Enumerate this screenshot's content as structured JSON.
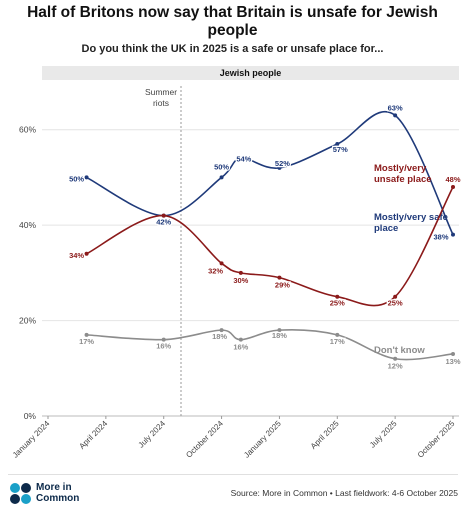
{
  "title": "Half of Britons now say that Britain is unsafe for Jewish people",
  "subtitle": "Do you think the UK in 2025 is a safe or unsafe place for...",
  "panel_label": "Jewish people",
  "source": "Source: More in Common • Last fieldwork: 4-6 October 2025",
  "logo": {
    "line1": "More in",
    "line2": "Common"
  },
  "chart_data": {
    "type": "line",
    "x_ticks": [
      "January 2024",
      "April 2024",
      "July 2024",
      "October 2024",
      "January 2025",
      "April 2025",
      "July 2025",
      "October 2025"
    ],
    "y_ticks": [
      "0%",
      "20%",
      "40%",
      "60%"
    ],
    "ylim": [
      0,
      70
    ],
    "xlim": [
      "2024-01",
      "2025-10"
    ],
    "annotation": {
      "label_line1": "Summer",
      "label_line2": "riots",
      "x": "2024-08"
    },
    "series": [
      {
        "name": "Mostly/very safe place",
        "name_lines": [
          "Mostly/very safe",
          "place"
        ],
        "color": "#1f3a7a",
        "points": [
          {
            "x": "2024-03",
            "y": 50,
            "label": "50%"
          },
          {
            "x": "2024-07",
            "y": 42,
            "label": "42%"
          },
          {
            "x": "2024-10",
            "y": 50,
            "label": "50%"
          },
          {
            "x": "2024-11",
            "y": 54,
            "label": "54%"
          },
          {
            "x": "2025-01",
            "y": 52,
            "label": "52%"
          },
          {
            "x": "2025-04",
            "y": 57,
            "label": "57%"
          },
          {
            "x": "2025-07",
            "y": 63,
            "label": "63%"
          },
          {
            "x": "2025-10",
            "y": 38,
            "label": "38%"
          }
        ]
      },
      {
        "name": "Mostly/very unsafe place",
        "name_lines": [
          "Mostly/very",
          "unsafe place"
        ],
        "color": "#8b1a1a",
        "points": [
          {
            "x": "2024-03",
            "y": 34,
            "label": "34%"
          },
          {
            "x": "2024-07",
            "y": 42,
            "label": ""
          },
          {
            "x": "2024-10",
            "y": 32,
            "label": "32%"
          },
          {
            "x": "2024-11",
            "y": 30,
            "label": "30%"
          },
          {
            "x": "2025-01",
            "y": 29,
            "label": "29%"
          },
          {
            "x": "2025-04",
            "y": 25,
            "label": "25%"
          },
          {
            "x": "2025-07",
            "y": 25,
            "label": "25%"
          },
          {
            "x": "2025-10",
            "y": 48,
            "label": "48%"
          }
        ]
      },
      {
        "name": "Don't know",
        "name_lines": [
          "Don't know"
        ],
        "color": "#8c8c8c",
        "points": [
          {
            "x": "2024-03",
            "y": 17,
            "label": "17%"
          },
          {
            "x": "2024-07",
            "y": 16,
            "label": "16%"
          },
          {
            "x": "2024-10",
            "y": 18,
            "label": "18%"
          },
          {
            "x": "2024-11",
            "y": 16,
            "label": "16%"
          },
          {
            "x": "2025-01",
            "y": 18,
            "label": "18%"
          },
          {
            "x": "2025-04",
            "y": 17,
            "label": "17%"
          },
          {
            "x": "2025-07",
            "y": 12,
            "label": "12%"
          },
          {
            "x": "2025-10",
            "y": 13,
            "label": "13%"
          }
        ]
      }
    ]
  }
}
